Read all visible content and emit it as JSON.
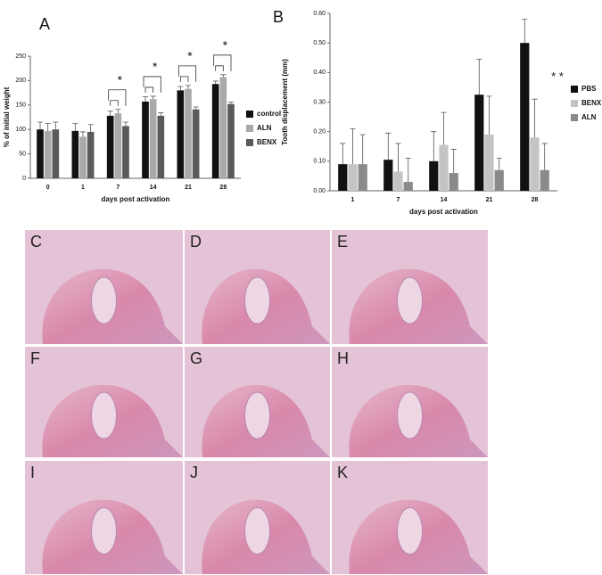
{
  "chart_data": [
    {
      "type": "bar",
      "panel": "A",
      "ylabel": "% of initial weight",
      "xlabel": "days post activation",
      "categories": [
        "0",
        "1",
        "7",
        "14",
        "21",
        "28"
      ],
      "series": [
        {
          "name": "control",
          "color": "#111111",
          "values": [
            100,
            97,
            128,
            157,
            180,
            193
          ],
          "errors": [
            15,
            15,
            10,
            10,
            8,
            6
          ]
        },
        {
          "name": "ALN",
          "color": "#a9a9a9",
          "values": [
            97,
            85,
            133,
            162,
            183,
            207
          ],
          "errors": [
            15,
            10,
            8,
            6,
            7,
            5
          ]
        },
        {
          "name": "BENX",
          "color": "#5a5a5a",
          "values": [
            100,
            95,
            107,
            128,
            141,
            152
          ],
          "errors": [
            15,
            15,
            8,
            6,
            5,
            4
          ]
        }
      ],
      "significance": [
        null,
        null,
        "*",
        "*",
        "*",
        "*"
      ],
      "ylim": [
        0,
        250
      ],
      "yticks": [
        0,
        50,
        100,
        150,
        200,
        250
      ],
      "legend": "right"
    },
    {
      "type": "bar",
      "panel": "B",
      "ylabel": "Tooth displacement (mm)",
      "xlabel": "days post activation",
      "categories": [
        "1",
        "7",
        "14",
        "21",
        "28"
      ],
      "series": [
        {
          "name": "PBS",
          "color": "#111111",
          "values": [
            0.09,
            0.105,
            0.1,
            0.325,
            0.5
          ],
          "errors": [
            0.07,
            0.09,
            0.1,
            0.12,
            0.08
          ]
        },
        {
          "name": "BENX",
          "color": "#c4c4c4",
          "values": [
            0.09,
            0.065,
            0.155,
            0.19,
            0.18
          ],
          "errors": [
            0.12,
            0.095,
            0.11,
            0.13,
            0.13
          ]
        },
        {
          "name": "ALN",
          "color": "#8a8a8a",
          "values": [
            0.09,
            0.03,
            0.06,
            0.07,
            0.07
          ],
          "errors": [
            0.1,
            0.08,
            0.08,
            0.04,
            0.09
          ]
        }
      ],
      "significance": [
        null,
        null,
        null,
        null,
        "* *"
      ],
      "ylim": [
        0,
        0.6
      ],
      "yticks": [
        {
          "value": 0,
          "label": "0.00"
        },
        {
          "value": 0.1,
          "label": "0.10"
        },
        {
          "value": 0.2,
          "label": "0.20"
        },
        {
          "value": 0.3,
          "label": "0.30"
        },
        {
          "value": 0.4,
          "label": "0.40"
        },
        {
          "value": 0.5,
          "label": "0.50"
        },
        {
          "value": 0.6,
          "label": "0.60"
        }
      ],
      "legend": "right"
    }
  ],
  "panels": [
    "C",
    "D",
    "E",
    "F",
    "G",
    "H",
    "I",
    "J",
    "K"
  ]
}
